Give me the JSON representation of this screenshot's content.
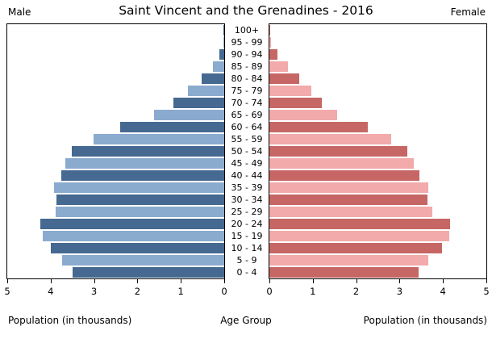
{
  "header": {
    "male_label": "Male",
    "female_label": "Female",
    "title": "Saint Vincent and the Grenadines - 2016"
  },
  "footer": {
    "left_axis_label": "Population (in thousands)",
    "center_label": "Age Group",
    "right_axis_label": "Population (in thousands)"
  },
  "chart_data": {
    "type": "bar",
    "subtype": "population-pyramid",
    "title": "Saint Vincent and the Grenadines - 2016",
    "categories": [
      "100+",
      "95 - 99",
      "90 - 94",
      "85 - 89",
      "80 - 84",
      "75 - 79",
      "70 - 74",
      "65 - 69",
      "60 - 64",
      "55 - 59",
      "50 - 54",
      "45 - 49",
      "40 - 44",
      "35 - 39",
      "30 - 34",
      "25 - 29",
      "20 - 24",
      "15 - 19",
      "10 - 14",
      "5 - 9",
      "0 - 4"
    ],
    "series": [
      {
        "name": "Male",
        "side": "left",
        "values": [
          0.01,
          0.02,
          0.11,
          0.26,
          0.53,
          0.84,
          1.18,
          1.61,
          2.39,
          3.01,
          3.52,
          3.67,
          3.75,
          3.93,
          3.87,
          3.89,
          4.23,
          4.18,
          3.99,
          3.73,
          3.49
        ]
      },
      {
        "name": "Female",
        "side": "right",
        "values": [
          0.02,
          0.04,
          0.18,
          0.42,
          0.69,
          0.97,
          1.2,
          1.57,
          2.27,
          2.81,
          3.17,
          3.32,
          3.46,
          3.67,
          3.65,
          3.76,
          4.16,
          4.15,
          3.97,
          3.67,
          3.43
        ]
      }
    ],
    "xlabel": "Population (in thousands)",
    "ylabel": "Age Group",
    "xlim": [
      0,
      5
    ],
    "xticks": [
      0,
      1,
      2,
      3,
      4,
      5
    ],
    "grid": false,
    "legend_position": "none",
    "colors": {
      "male_dark": "#456990",
      "male_light": "#8aabce",
      "female_dark": "#c66765",
      "female_light": "#f2aaaa",
      "axis_border": "#000000",
      "background": "#ffffff"
    }
  }
}
